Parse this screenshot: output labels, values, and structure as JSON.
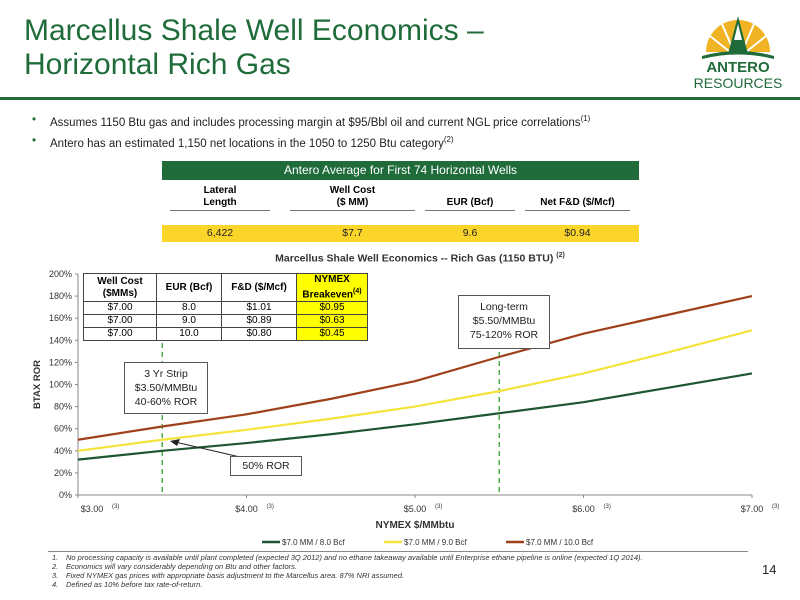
{
  "slide": {
    "title_line1": "Marcellus Shale Well Economics –",
    "title_line2": "Horizontal Rich Gas",
    "page_number": "14"
  },
  "logo": {
    "line1": "ANTERO",
    "line2": "RESOURCES",
    "icon": "antero-sun-derrick-logo"
  },
  "bullets": [
    {
      "text": "Assumes 1150 Btu gas and includes processing margin at $95/Bbl oil and current NGL price correlations",
      "sup": "(1)"
    },
    {
      "text": "Antero has an estimated 1,150 net locations in the 1050 to 1250 Btu category",
      "sup": "(2)"
    }
  ],
  "average_table": {
    "title": "Antero Average for First 74 Horizontal Wells",
    "headers": [
      "Lateral\nLength",
      "Well Cost\n($ MM)",
      "EUR (Bcf)",
      "Net F&D ($/Mcf)"
    ],
    "values": [
      "6,422",
      "$7.7",
      "9.6",
      "$0.94"
    ]
  },
  "inner_table": {
    "headers": [
      "Well Cost\n($MMs)",
      "EUR (Bcf)",
      "F&D ($/Mcf)",
      "NYMEX\nBreakeven"
    ],
    "breakeven_sup": "(4)",
    "rows": [
      [
        "$7.00",
        "8.0",
        "$1.01",
        "$0.95"
      ],
      [
        "$7.00",
        "9.0",
        "$0.89",
        "$0.63"
      ],
      [
        "$7.00",
        "10.0",
        "$0.80",
        "$0.45"
      ]
    ]
  },
  "callouts": {
    "strip": [
      "3 Yr Strip",
      "$3.50/MMBtu",
      "40-60% ROR"
    ],
    "longterm": [
      "Long-term",
      "$5.50/MMBtu",
      "75-120% ROR"
    ],
    "ror50": "50% ROR"
  },
  "chart_data": {
    "type": "line",
    "title": "Marcellus Shale Well Economics -- Rich Gas (1150 BTU)",
    "title_sup": "(2)",
    "xlabel": "NYMEX $/MMbtu",
    "ylabel": "BTAX ROR",
    "xlim": [
      3.0,
      7.0
    ],
    "ylim": [
      0,
      200
    ],
    "x_ticks": [
      3,
      4,
      5,
      6,
      7
    ],
    "x_tick_labels": [
      "$3.00",
      "$4.00",
      "$5.00",
      "$6.00",
      "$7.00"
    ],
    "x_tick_sup": "(3)",
    "y_ticks": [
      0,
      20,
      40,
      60,
      80,
      100,
      120,
      140,
      160,
      180,
      200
    ],
    "y_tick_labels": [
      "0%",
      "20%",
      "40%",
      "60%",
      "80%",
      "100%",
      "120%",
      "140%",
      "160%",
      "180%",
      "200%"
    ],
    "grid": false,
    "legend_position": "bottom",
    "vertical_markers": [
      3.5,
      5.5
    ],
    "x": [
      3.0,
      3.5,
      4.0,
      4.5,
      5.0,
      5.5,
      6.0,
      6.5,
      7.0
    ],
    "series": [
      {
        "name": "$7.0 MM / 8.0 Bcf",
        "color": "#1e5631",
        "values": [
          32,
          40,
          47,
          55,
          64,
          74,
          84,
          97,
          110
        ]
      },
      {
        "name": "$7.0 MM / 9.0 Bcf",
        "color": "#f5e33c",
        "values": [
          40,
          50,
          59,
          69,
          80,
          94,
          110,
          129,
          149
        ]
      },
      {
        "name": "$7.0 MM / 10.0 Bcf",
        "color": "#a0401a",
        "values": [
          50,
          62,
          73,
          87,
          103,
          125,
          146,
          163,
          180
        ]
      }
    ]
  },
  "footnotes": [
    {
      "n": "1.",
      "text": "No processing capacity is available until plant completed (expected 3Q 2012) and no ethane takeaway available until Enterprise ethane pipeline is online (expected 1Q 2014)."
    },
    {
      "n": "2.",
      "text": "Economics will vary considerably depending on Btu and other factors."
    },
    {
      "n": "3.",
      "text": "Fixed NYMEX gas prices with appropriate basis adjustment to the Marcellus area. 87% NRI assumed."
    },
    {
      "n": "4.",
      "text": "Defined as 10% before tax rate-of-return."
    }
  ],
  "colors": {
    "brand_green": "#1f6b3a",
    "highlight_yellow": "#fcd52b",
    "marker_green": "#4cae4c"
  }
}
